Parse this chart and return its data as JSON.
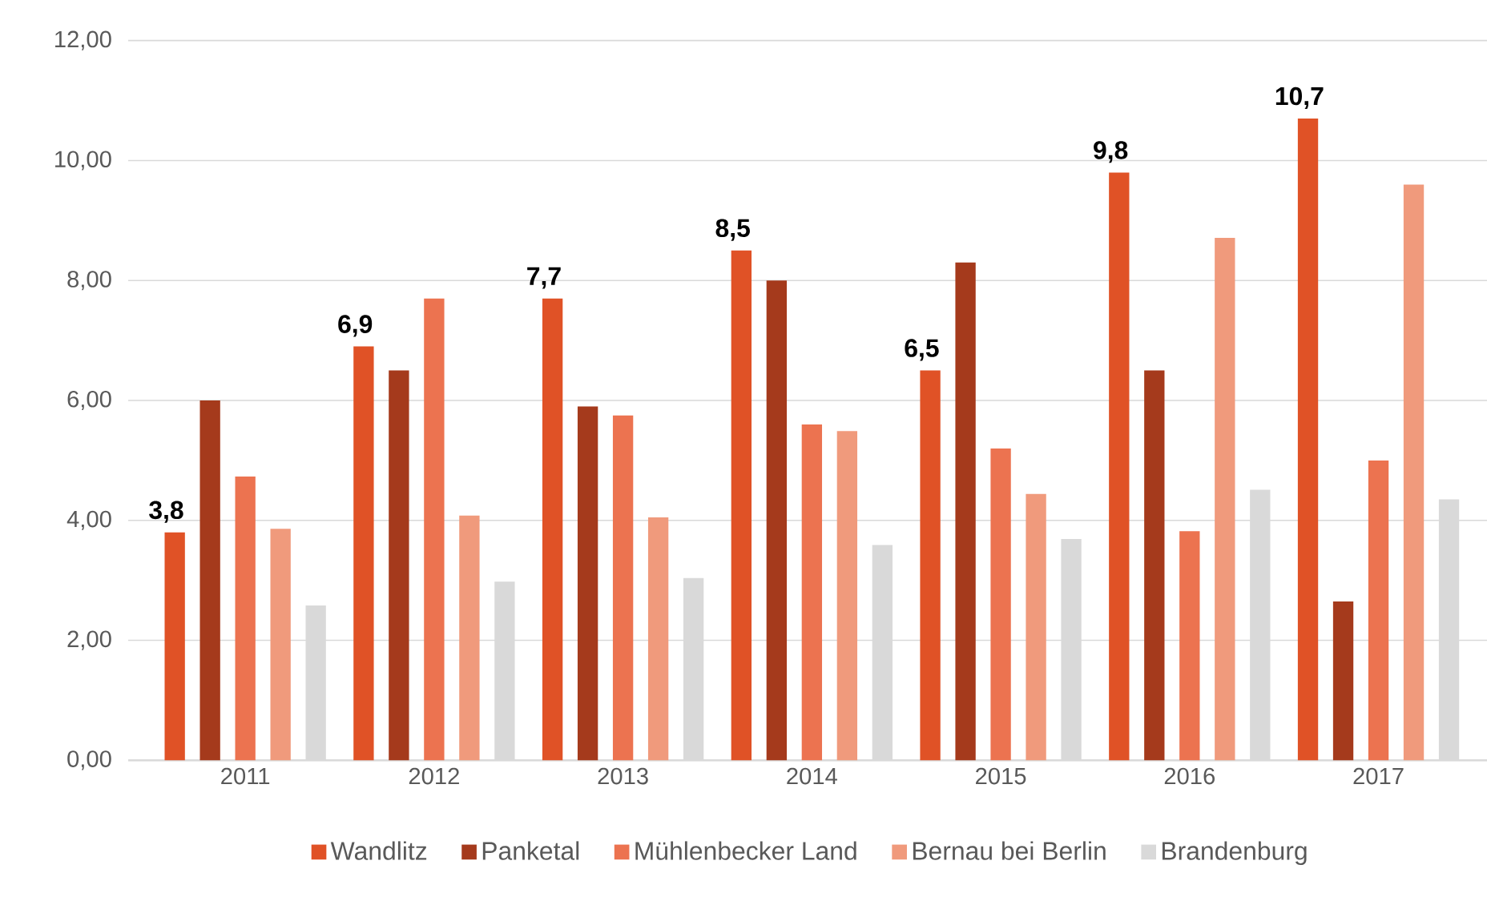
{
  "chart_data": {
    "type": "bar",
    "categories": [
      "2011",
      "2012",
      "2013",
      "2014",
      "2015",
      "2016",
      "2017"
    ],
    "series": [
      {
        "name": "Wandlitz",
        "color": "#e05226",
        "values": [
          3.8,
          6.9,
          7.7,
          8.5,
          6.5,
          9.8,
          10.7
        ],
        "value_labels": [
          "3,8",
          "6,9",
          "7,7",
          "8,5",
          "6,5",
          "9,8",
          "10,7"
        ]
      },
      {
        "name": "Panketal",
        "color": "#a53a1c",
        "values": [
          6.0,
          6.5,
          5.9,
          8.0,
          8.3,
          6.5,
          2.65
        ]
      },
      {
        "name": "Mühlenbecker Land",
        "color": "#ec7350",
        "values": [
          4.73,
          7.7,
          5.75,
          5.6,
          5.2,
          3.82,
          5.0
        ]
      },
      {
        "name": "Bernau bei Berlin",
        "color": "#f09a7c",
        "values": [
          3.86,
          4.08,
          4.05,
          5.49,
          4.44,
          8.71,
          9.6
        ]
      },
      {
        "name": "Brandenburg",
        "color": "#d9d9d9",
        "values": [
          2.58,
          2.98,
          3.04,
          3.59,
          3.69,
          4.51,
          4.35
        ]
      }
    ],
    "ylim": [
      0,
      12
    ],
    "yticks": [
      {
        "value": 0,
        "label": "0,00"
      },
      {
        "value": 2,
        "label": "2,00"
      },
      {
        "value": 4,
        "label": "4,00"
      },
      {
        "value": 6,
        "label": "6,00"
      },
      {
        "value": 8,
        "label": "8,00"
      },
      {
        "value": 10,
        "label": "10,00"
      },
      {
        "value": 12,
        "label": "12,00"
      }
    ],
    "grid": "y",
    "legend": "bottom"
  }
}
